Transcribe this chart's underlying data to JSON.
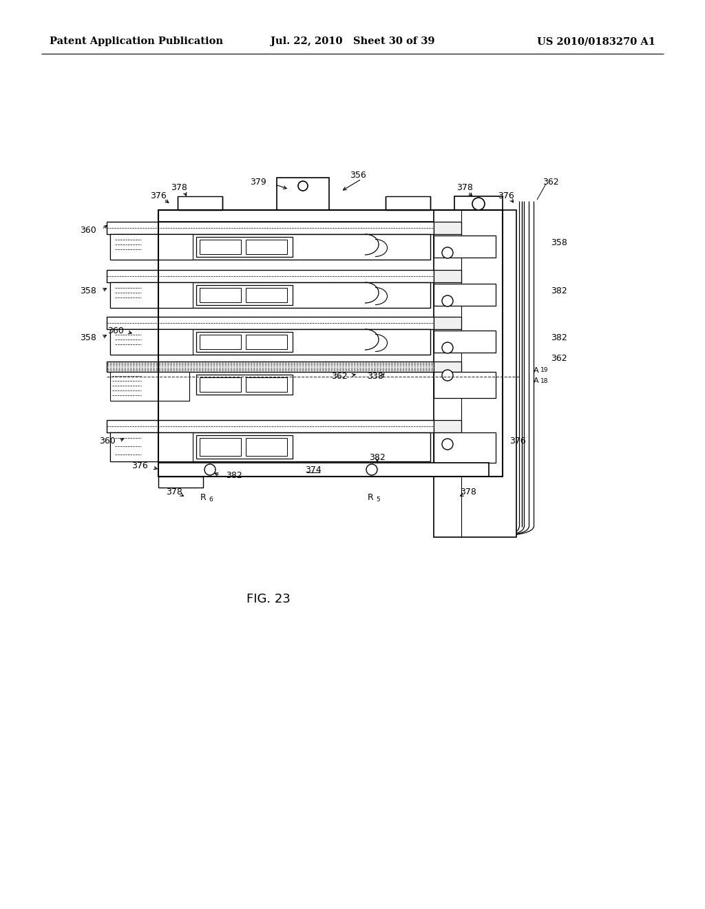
{
  "bg_color": "#ffffff",
  "header_left": "Patent Application Publication",
  "header_center": "Jul. 22, 2010   Sheet 30 of 39",
  "header_right": "US 2010/0183270 A1",
  "figure_label": "FIG. 23"
}
